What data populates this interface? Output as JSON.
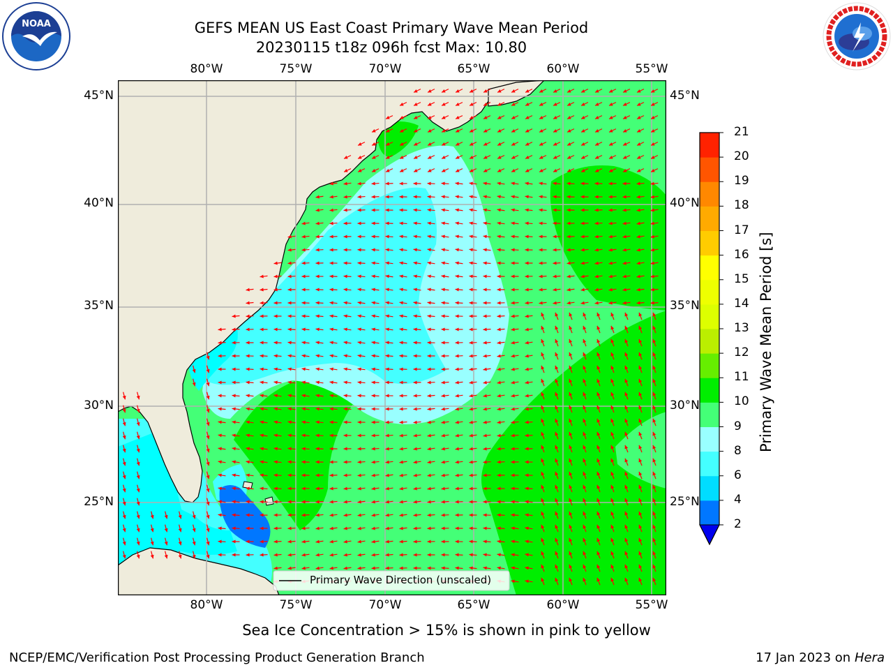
{
  "header": {
    "title_line1": "GEFS MEAN US East Coast Primary Wave Mean Period",
    "title_line2": "20230115 t18z 096h fcst   Max: 10.80"
  },
  "logos": {
    "left": {
      "name": "NOAA",
      "label": "NOAA",
      "ring_text": "NATIONAL OCEANIC AND ATMOSPHERIC ADMINISTRATION · U.S. DEPARTMENT OF COMMERCE"
    },
    "right": {
      "name": "National Weather Service",
      "ring_text": "NATIONAL WEATHER SERVICE"
    }
  },
  "map": {
    "lon_range": [
      -85,
      -54.2
    ],
    "lat_range": [
      20.5,
      46
    ],
    "lon_ticks": [
      {
        "lon": -80,
        "label": "80°W"
      },
      {
        "lon": -75,
        "label": "75°W"
      },
      {
        "lon": -70,
        "label": "70°W"
      },
      {
        "lon": -65,
        "label": "65°W"
      },
      {
        "lon": -60,
        "label": "60°W"
      },
      {
        "lon": -55,
        "label": "55°W"
      }
    ],
    "lat_ticks": [
      {
        "lat": 45,
        "label": "45°N"
      },
      {
        "lat": 40,
        "label": "40°N"
      },
      {
        "lat": 35,
        "label": "35°N"
      },
      {
        "lat": 30,
        "label": "30°N"
      },
      {
        "lat": 25,
        "label": "25°N"
      }
    ],
    "legend_label": "Primary Wave Direction (unscaled)",
    "colors": {
      "land": "#efecdc",
      "gridline": "#b0b0b0",
      "arrow": "#ff0000",
      "coastline": "#000000"
    }
  },
  "colorbar": {
    "label": "Primary Wave Mean Period [s]",
    "ticks": [
      "2",
      "4",
      "6",
      "8",
      "9",
      "10",
      "11",
      "12",
      "13",
      "14",
      "15",
      "16",
      "17",
      "18",
      "19",
      "20",
      "21"
    ],
    "colors": [
      "#0077ff",
      "#00ddff",
      "#44ffff",
      "#99ffff",
      "#44ff77",
      "#00ee00",
      "#66ee00",
      "#bbee00",
      "#ddff00",
      "#eeff00",
      "#ffff00",
      "#ffcc00",
      "#ffaa00",
      "#ff8800",
      "#ff5500",
      "#ff2200"
    ],
    "under_color": "#0000ee"
  },
  "footer": {
    "sea_ice_note": "Sea Ice Concentration > 15% is shown in pink to yellow",
    "branch": "NCEP/EMC/Verification Post Processing Product Generation Branch",
    "date": "17 Jan 2023 on ",
    "machine": "Hera"
  }
}
